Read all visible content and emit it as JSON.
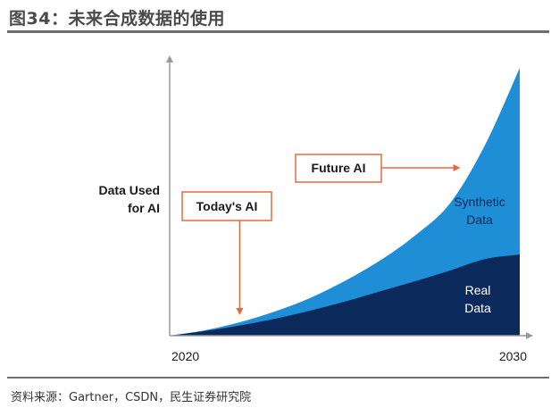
{
  "figure": {
    "title": "图34：未来合成数据的使用",
    "source": "资料来源：Gartner，CSDN，民生证券研究院"
  },
  "colors": {
    "real": "#0b2a5b",
    "synthetic": "#1e8fd6",
    "annotation": "#e8683a",
    "axis": "#9a9a9a"
  },
  "chart_data": {
    "type": "area",
    "stacked": true,
    "title": "",
    "ylabel_lines": [
      "Data Used",
      "for AI"
    ],
    "xlabel": "",
    "x_ticks": [
      "2020",
      "2030"
    ],
    "x": [
      2020,
      2021,
      2022,
      2023,
      2024,
      2025,
      2026,
      2027,
      2028,
      2029,
      2030
    ],
    "ylim": [
      0,
      100
    ],
    "series": [
      {
        "name": "Real Data",
        "name_lines": [
          "Real",
          "Data"
        ],
        "color_key": "real",
        "values": [
          0,
          1.7,
          3.8,
          6.3,
          9.3,
          12.7,
          16.5,
          20.3,
          24.3,
          28.6,
          30.3
        ]
      },
      {
        "name": "Synthetic Data",
        "name_lines": [
          "Synthetic",
          "Data"
        ],
        "color_key": "synthetic",
        "values": [
          0,
          0.3,
          1.2,
          2.7,
          4.7,
          7.7,
          11.5,
          17.0,
          25.0,
          42.4,
          69.7
        ]
      }
    ],
    "annotations": [
      {
        "label": "Today's AI",
        "x": 2022
      },
      {
        "label": "Future AI",
        "x": 2028
      }
    ],
    "grid": false,
    "legend": "none"
  }
}
